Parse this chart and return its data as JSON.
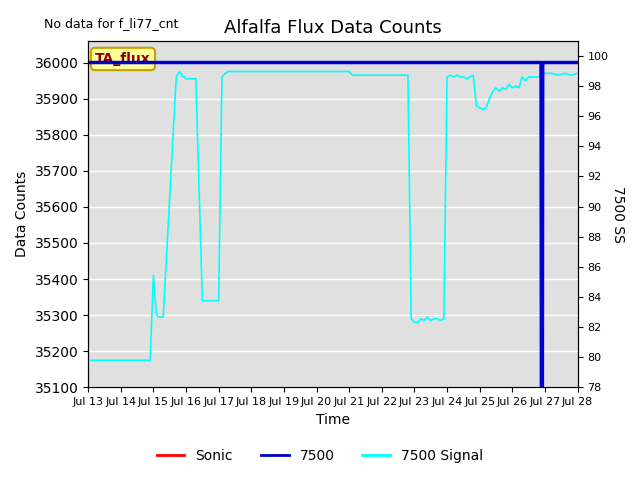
{
  "title": "Alfalfa Flux Data Counts",
  "top_left_note": "No data for f_li77_cnt",
  "xlabel": "Time",
  "ylabel_left": "Data Counts",
  "ylabel_right": "7500 SS",
  "ylim_left": [
    35100,
    36060
  ],
  "ylim_right": [
    78,
    101
  ],
  "yticks_left": [
    35100,
    35200,
    35300,
    35400,
    35500,
    35600,
    35700,
    35800,
    35900,
    36000
  ],
  "yticks_right": [
    78,
    80,
    82,
    84,
    86,
    88,
    90,
    92,
    94,
    96,
    98,
    100
  ],
  "xtick_labels": [
    "Jul 13",
    "Jul 14",
    "Jul 15",
    "Jul 16",
    "Jul 17",
    "Jul 18",
    "Jul 19",
    "Jul 20",
    "Jul 21",
    "Jul 22",
    "Jul 23",
    "Jul 24",
    "Jul 25",
    "Jul 26",
    "Jul 27",
    "Jul 28"
  ],
  "bg_color": "#e0e0e0",
  "bg_white_bands": true,
  "annotation_box_text": "TA_flux",
  "annotation_box_bg": "#ffff99",
  "annotation_box_border": "#c8a000",
  "signal_color": "#00ffff",
  "sonic_color": "#ff0000",
  "cnt7500_color": "#0000cc",
  "signal_x": [
    0,
    1.0,
    1.5,
    1.9,
    2.0,
    2.05,
    2.1,
    2.15,
    2.3,
    2.7,
    2.8,
    2.85,
    2.9,
    2.95,
    3.0,
    3.3,
    3.5,
    3.8,
    4.0,
    4.1,
    4.2,
    4.3,
    5.0,
    5.5,
    6.0,
    6.5,
    7.0,
    7.5,
    7.9,
    8.0,
    8.05,
    8.1,
    8.5,
    9.0,
    9.5,
    9.8,
    9.9,
    9.95,
    10.0,
    10.05,
    10.1,
    10.2,
    10.3,
    10.4,
    10.5,
    10.6,
    10.7,
    10.8,
    10.9,
    11.0,
    11.1,
    11.2,
    11.3,
    11.4,
    11.5,
    11.6,
    11.7,
    11.8,
    11.9,
    12.0,
    12.1,
    12.2,
    12.3,
    12.4,
    12.5,
    12.6,
    12.7,
    12.8,
    12.9,
    13.0,
    13.1,
    13.2,
    13.3,
    13.4,
    13.5,
    13.6,
    13.7,
    13.8,
    13.9,
    14.0,
    14.2,
    14.4,
    14.6,
    14.8,
    15.0
  ],
  "signal_y": [
    35175,
    35175,
    35175,
    35175,
    35410,
    35350,
    35300,
    35295,
    35295,
    35960,
    35975,
    35970,
    35960,
    35960,
    35955,
    35955,
    35340,
    35340,
    35340,
    35960,
    35970,
    35975,
    35975,
    35975,
    35975,
    35975,
    35975,
    35975,
    35975,
    35975,
    35970,
    35965,
    35965,
    35965,
    35965,
    35965,
    35290,
    35285,
    35280,
    35280,
    35280,
    35290,
    35285,
    35295,
    35285,
    35290,
    35290,
    35285,
    35290,
    35960,
    35965,
    35960,
    35965,
    35960,
    35960,
    35955,
    35960,
    35965,
    35880,
    35875,
    35870,
    35875,
    35900,
    35920,
    35930,
    35920,
    35930,
    35925,
    35940,
    35930,
    35935,
    35930,
    35960,
    35950,
    35960,
    35960,
    35960,
    35960,
    35965,
    35970,
    35970,
    35965,
    35970,
    35965,
    35970
  ],
  "cnt7500_x": [
    0,
    13.88,
    13.89,
    13.92,
    13.93,
    15.0
  ],
  "cnt7500_y": [
    36000,
    36000,
    35100,
    35100,
    36000,
    36000
  ],
  "title_fontsize": 13,
  "label_fontsize": 10,
  "tick_fontsize": 8
}
